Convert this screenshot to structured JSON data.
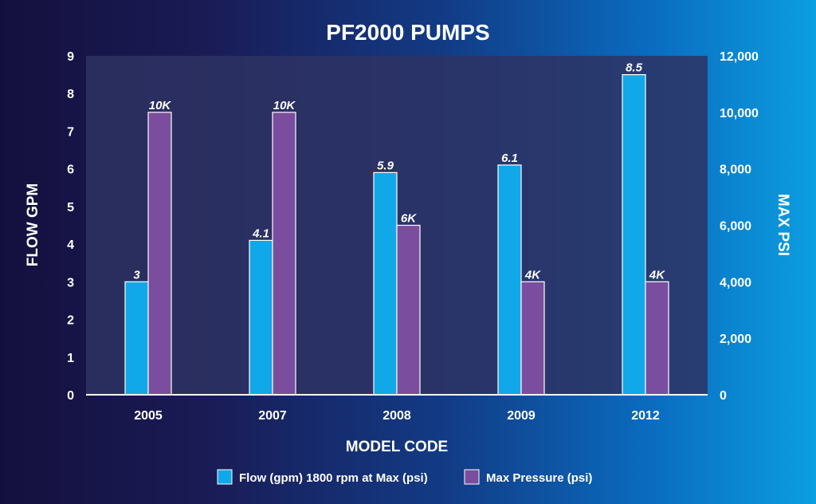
{
  "chart_data": {
    "type": "bar",
    "title": "PF2000 PUMPS",
    "xlabel": "MODEL CODE",
    "ylabel": "FLOW GPM",
    "y2label": "MAX PSI",
    "categories": [
      "2005",
      "2007",
      "2008",
      "2009",
      "2012"
    ],
    "ylim": [
      0,
      9
    ],
    "y2lim": [
      0,
      12000
    ],
    "yticks": [
      "0",
      "1",
      "2",
      "3",
      "4",
      "5",
      "6",
      "7",
      "8",
      "9"
    ],
    "y2ticks": [
      "0",
      "2,000",
      "4,000",
      "6,000",
      "8,000",
      "10,000",
      "12,000"
    ],
    "series": [
      {
        "name": "Flow (gpm) 1800 rpm at Max (psi)",
        "axis": "left",
        "color": "#10a8e8",
        "values": [
          3,
          4.1,
          5.9,
          6.1,
          8.5
        ],
        "labels": [
          "3",
          "4.1",
          "5.9",
          "6.1",
          "8.5"
        ]
      },
      {
        "name": "Max Pressure (psi)",
        "axis": "right",
        "color": "#7a4d9e",
        "values": [
          10000,
          10000,
          6000,
          4000,
          4000
        ],
        "labels": [
          "10K",
          "10K",
          "6K",
          "4K",
          "4K"
        ]
      }
    ],
    "grid": false,
    "legend_position": "bottom"
  }
}
